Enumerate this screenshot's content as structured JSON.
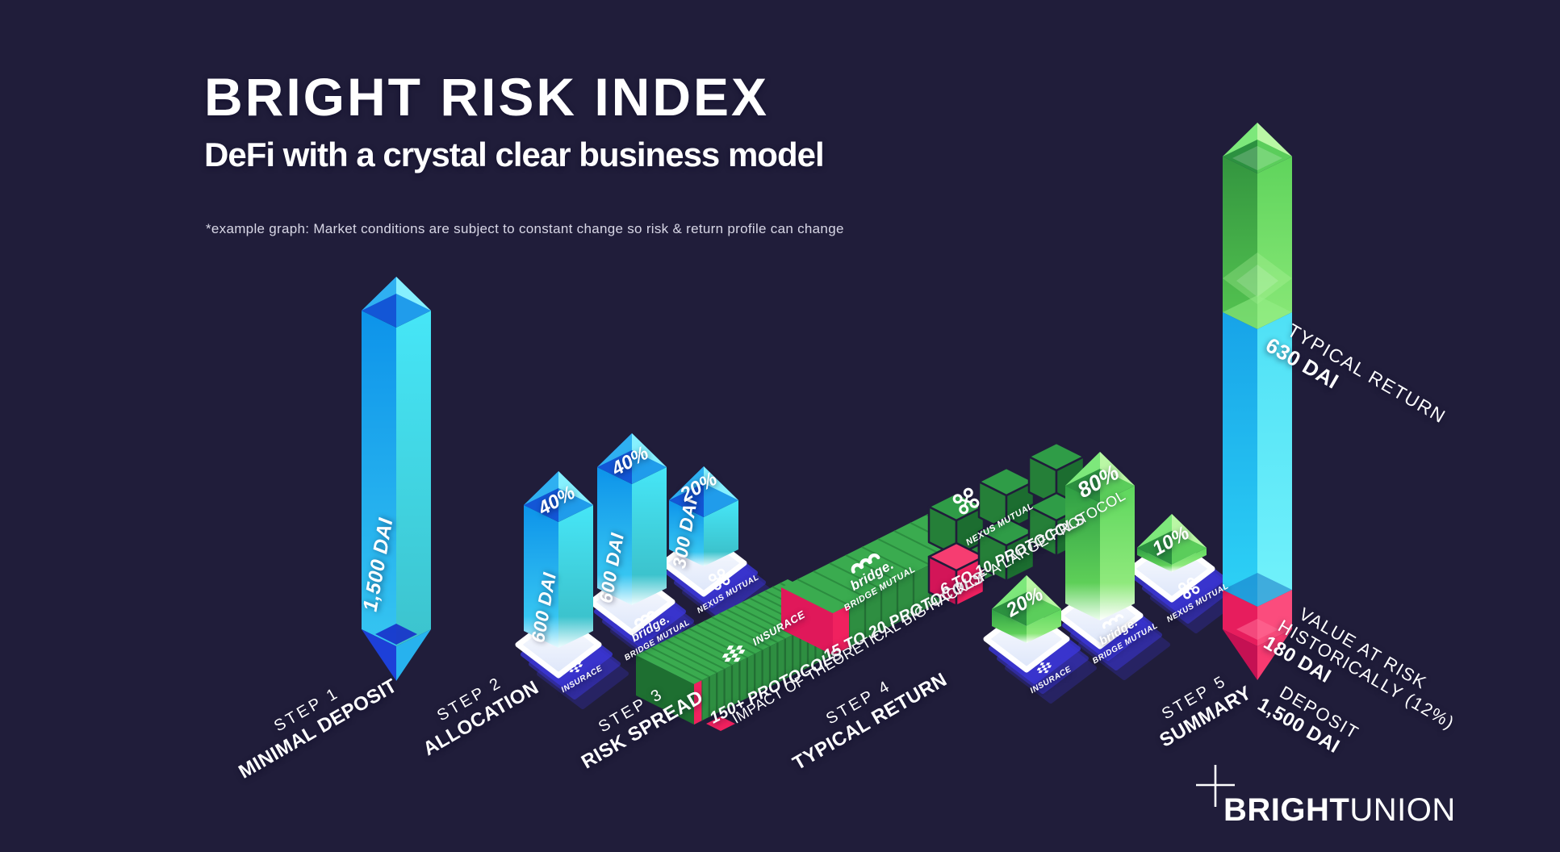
{
  "header": {
    "title": "BRIGHT RISK INDEX",
    "subtitle": "DeFi with a crystal clear business model",
    "note": "*example graph: Market conditions are subject to constant change so risk & return profile can change"
  },
  "steps": [
    {
      "step": "STEP 1",
      "name": "MINIMAL DEPOSIT"
    },
    {
      "step": "STEP 2",
      "name": "ALLOCATION"
    },
    {
      "step": "STEP 3",
      "name": "RISK SPREAD"
    },
    {
      "step": "STEP 4",
      "name": "TYPICAL RETURN"
    },
    {
      "step": "STEP 5",
      "name": "SUMMARY"
    }
  ],
  "deposit": {
    "amount": "1,500 DAI"
  },
  "allocation": {
    "bars": [
      {
        "pct": "40%",
        "amount": "600 DAI"
      },
      {
        "pct": "40%",
        "amount": "600 DAI"
      },
      {
        "pct": "20%",
        "amount": "300 DAI"
      }
    ]
  },
  "risk_spread": {
    "slabs": [
      "150+ PROTOCOLS",
      "15 TO 20 PROTOCOLS",
      "6 TO 10 PROTOCOLS"
    ],
    "legend": "IMPACT OF THEORETICAL BIG HACK OF A LARGE PROTOCOL"
  },
  "typical_return": {
    "bars": [
      {
        "pct": "20%"
      },
      {
        "pct": "80%"
      },
      {
        "pct": "10%"
      }
    ]
  },
  "summary": {
    "return_label": "TYPICAL RETURN",
    "return_value": "630 DAI",
    "risk_line1": "VALUE AT RISK",
    "risk_line2": "HISTORICALLY (12%)",
    "risk_value": "180 DAI",
    "deposit_label": "DEPOSIT",
    "deposit_value": "1,500 DAI"
  },
  "protocols": {
    "insurace": "INSURACE",
    "bridge_brand": "bridge.",
    "bridge": "BRIDGE MUTUAL",
    "nexus": "NEXUS MUTUAL"
  },
  "footer": {
    "brand_bold": "BRIGHT",
    "brand_light": "UNION"
  },
  "colors": {
    "background": "#201d3a",
    "blue": "#29b6f0",
    "green": "#4cc653",
    "pink": "#f0215f",
    "indigo": "#3b36d9",
    "white": "#ffffff"
  },
  "chart_data": {
    "type": "bar",
    "title": "BRIGHT RISK INDEX",
    "subtitle": "DeFi with a crystal clear business model",
    "unit": "DAI",
    "steps": [
      {
        "step": 1,
        "label": "MINIMAL DEPOSIT",
        "values": [
          {
            "name": "Deposit",
            "value": 1500
          }
        ]
      },
      {
        "step": 2,
        "label": "ALLOCATION",
        "values": [
          {
            "name": "INSURACE",
            "pct": 40,
            "value": 600
          },
          {
            "name": "BRIDGE MUTUAL",
            "pct": 40,
            "value": 600
          },
          {
            "name": "NEXUS MUTUAL",
            "pct": 20,
            "value": 300
          }
        ]
      },
      {
        "step": 3,
        "label": "RISK SPREAD",
        "values": [
          {
            "name": "INSURACE",
            "protocols": "150+"
          },
          {
            "name": "BRIDGE MUTUAL",
            "protocols": "15 to 20"
          },
          {
            "name": "NEXUS MUTUAL",
            "protocols": "6 to 10"
          }
        ],
        "legend": "IMPACT OF THEORETICAL BIG HACK OF A LARGE PROTOCOL"
      },
      {
        "step": 4,
        "label": "TYPICAL RETURN",
        "values": [
          {
            "name": "INSURACE",
            "pct": 20
          },
          {
            "name": "BRIDGE MUTUAL",
            "pct": 80
          },
          {
            "name": "NEXUS MUTUAL",
            "pct": 10
          }
        ]
      },
      {
        "step": 5,
        "label": "SUMMARY",
        "values": [
          {
            "name": "TYPICAL RETURN",
            "value": 630
          },
          {
            "name": "VALUE AT RISK HISTORICALLY (12%)",
            "value": 180
          },
          {
            "name": "DEPOSIT",
            "value": 1500
          }
        ]
      }
    ]
  }
}
